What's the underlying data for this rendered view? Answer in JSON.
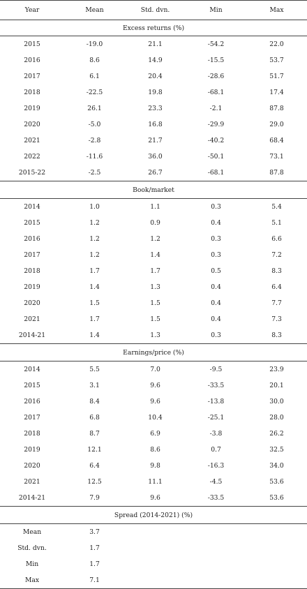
{
  "headers": [
    "Year",
    "Mean",
    "Std. dvn.",
    "Min",
    "Max"
  ],
  "sections": [
    {
      "title": "Excess returns (%)",
      "rows": [
        [
          "2015",
          "-19.0",
          "21.1",
          "-54.2",
          "22.0"
        ],
        [
          "2016",
          "8.6",
          "14.9",
          "-15.5",
          "53.7"
        ],
        [
          "2017",
          "6.1",
          "20.4",
          "-28.6",
          "51.7"
        ],
        [
          "2018",
          "-22.5",
          "19.8",
          "-68.1",
          "17.4"
        ],
        [
          "2019",
          "26.1",
          "23.3",
          "-2.1",
          "87.8"
        ],
        [
          "2020",
          "-5.0",
          "16.8",
          "-29.9",
          "29.0"
        ],
        [
          "2021",
          "-2.8",
          "21.7",
          "-40.2",
          "68.4"
        ],
        [
          "2022",
          "-11.6",
          "36.0",
          "-50.1",
          "73.1"
        ],
        [
          "2015-22",
          "-2.5",
          "26.7",
          "-68.1",
          "87.8"
        ]
      ]
    },
    {
      "title": "Book/market",
      "rows": [
        [
          "2014",
          "1.0",
          "1.1",
          "0.3",
          "5.4"
        ],
        [
          "2015",
          "1.2",
          "0.9",
          "0.4",
          "5.1"
        ],
        [
          "2016",
          "1.2",
          "1.2",
          "0.3",
          "6.6"
        ],
        [
          "2017",
          "1.2",
          "1.4",
          "0.3",
          "7.2"
        ],
        [
          "2018",
          "1.7",
          "1.7",
          "0.5",
          "8.3"
        ],
        [
          "2019",
          "1.4",
          "1.3",
          "0.4",
          "6.4"
        ],
        [
          "2020",
          "1.5",
          "1.5",
          "0.4",
          "7.7"
        ],
        [
          "2021",
          "1.7",
          "1.5",
          "0.4",
          "7.3"
        ],
        [
          "2014-21",
          "1.4",
          "1.3",
          "0.3",
          "8.3"
        ]
      ]
    },
    {
      "title": "Earnings/price (%)",
      "rows": [
        [
          "2014",
          "5.5",
          "7.0",
          "-9.5",
          "23.9"
        ],
        [
          "2015",
          "3.1",
          "9.6",
          "-33.5",
          "20.1"
        ],
        [
          "2016",
          "8.4",
          "9.6",
          "-13.8",
          "30.0"
        ],
        [
          "2017",
          "6.8",
          "10.4",
          "-25.1",
          "28.0"
        ],
        [
          "2018",
          "8.7",
          "6.9",
          "-3.8",
          "26.2"
        ],
        [
          "2019",
          "12.1",
          "8.6",
          "0.7",
          "32.5"
        ],
        [
          "2020",
          "6.4",
          "9.8",
          "-16.3",
          "34.0"
        ],
        [
          "2021",
          "12.5",
          "11.1",
          "-4.5",
          "53.6"
        ],
        [
          "2014-21",
          "7.9",
          "9.6",
          "-33.5",
          "53.6"
        ]
      ]
    },
    {
      "title": "Spread (2014-2021) (%)",
      "rows": [
        [
          "Mean",
          "3.7",
          "",
          "",
          ""
        ],
        [
          "Std. dvn.",
          "1.7",
          "",
          "",
          ""
        ],
        [
          "Min",
          "1.7",
          "",
          "",
          ""
        ],
        [
          "Max",
          "7.1",
          "",
          "",
          ""
        ]
      ]
    }
  ]
}
